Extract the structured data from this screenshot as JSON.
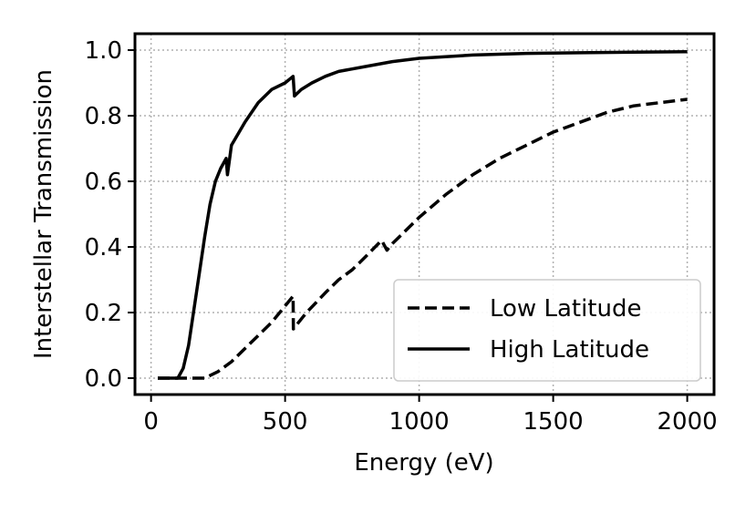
{
  "chart_data": {
    "type": "line",
    "title": "",
    "xlabel": "Energy (eV)",
    "ylabel": "Interstellar Transmission",
    "xlim": [
      -60,
      2100
    ],
    "ylim": [
      -0.05,
      1.05
    ],
    "xticks": [
      0,
      500,
      1000,
      1500,
      2000
    ],
    "xtick_labels": [
      "0",
      "500",
      "1000",
      "1500",
      "2000"
    ],
    "yticks": [
      0.0,
      0.2,
      0.4,
      0.6,
      0.8,
      1.0
    ],
    "ytick_labels": [
      "0.0",
      "0.2",
      "0.4",
      "0.6",
      "0.8",
      "1.0"
    ],
    "grid": true,
    "legend_position": "bottom-right",
    "series": [
      {
        "name": "Low Latitude",
        "style": "dashed",
        "color": "#000000",
        "x": [
          25,
          150,
          200,
          250,
          300,
          350,
          400,
          450,
          500,
          530,
          531,
          580,
          650,
          700,
          750,
          800,
          860,
          880,
          900,
          950,
          1000,
          1100,
          1200,
          1300,
          1400,
          1500,
          1600,
          1700,
          1800,
          1900,
          2000
        ],
        "y": [
          0.0,
          0.0,
          0.0,
          0.02,
          0.05,
          0.09,
          0.13,
          0.17,
          0.22,
          0.25,
          0.15,
          0.2,
          0.26,
          0.3,
          0.33,
          0.37,
          0.42,
          0.39,
          0.41,
          0.45,
          0.49,
          0.56,
          0.62,
          0.67,
          0.71,
          0.75,
          0.78,
          0.81,
          0.83,
          0.84,
          0.85
        ]
      },
      {
        "name": "High Latitude",
        "style": "solid",
        "color": "#000000",
        "x": [
          25,
          80,
          100,
          120,
          140,
          160,
          180,
          200,
          220,
          240,
          260,
          280,
          285,
          300,
          350,
          400,
          450,
          500,
          530,
          535,
          560,
          600,
          650,
          700,
          800,
          900,
          1000,
          1200,
          1400,
          1600,
          1800,
          2000
        ],
        "y": [
          0.0,
          0.0,
          0.0,
          0.03,
          0.1,
          0.21,
          0.32,
          0.43,
          0.53,
          0.6,
          0.64,
          0.67,
          0.62,
          0.71,
          0.78,
          0.84,
          0.88,
          0.9,
          0.92,
          0.86,
          0.88,
          0.9,
          0.92,
          0.935,
          0.95,
          0.965,
          0.975,
          0.985,
          0.99,
          0.992,
          0.994,
          0.995
        ]
      }
    ]
  }
}
